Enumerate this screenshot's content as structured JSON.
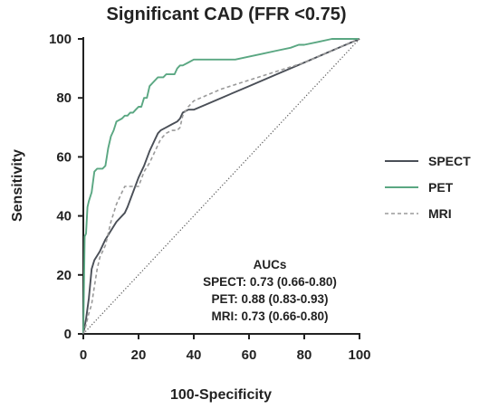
{
  "chart_data": {
    "type": "line",
    "title": "Significant CAD (FFR <0.75)",
    "xlabel": "100-Specificity",
    "ylabel": "Sensitivity",
    "xlim": [
      0,
      100
    ],
    "ylim": [
      0,
      100
    ],
    "xticks": [
      0,
      20,
      40,
      60,
      80,
      100
    ],
    "yticks": [
      0,
      20,
      40,
      60,
      80,
      100
    ],
    "grid": false,
    "legend_position": "right",
    "colors": {
      "SPECT": "#4a4f57",
      "PET": "#5aa782",
      "MRI": "#9a9a9a",
      "reference": "#555555"
    },
    "series": [
      {
        "name": "SPECT",
        "style": "solid",
        "x": [
          0,
          1,
          2,
          3,
          4,
          6,
          8,
          10,
          12,
          15,
          16,
          18,
          20,
          22,
          24,
          26,
          27,
          28,
          30,
          32,
          34,
          35,
          36,
          38,
          40,
          45,
          50,
          60,
          70,
          80,
          90,
          100
        ],
        "y": [
          0,
          5,
          12,
          22,
          25,
          28,
          32,
          35,
          38,
          41,
          43,
          48,
          53,
          57,
          62,
          66,
          68,
          69,
          70,
          71,
          72,
          73,
          75,
          76,
          76,
          78,
          80,
          84,
          88,
          92,
          96,
          100
        ]
      },
      {
        "name": "PET",
        "style": "solid",
        "x": [
          0,
          0.5,
          1,
          1.5,
          2,
          3,
          4,
          5,
          7,
          8,
          9,
          10,
          11,
          12,
          14,
          15,
          16,
          17,
          18,
          19,
          20,
          21,
          22,
          23,
          24,
          25,
          27,
          29,
          30,
          33,
          34,
          35,
          36,
          38,
          40,
          55,
          60,
          65,
          70,
          75,
          78,
          80,
          85,
          90,
          95,
          100
        ],
        "y": [
          0,
          33,
          34,
          43,
          45,
          48,
          55,
          56,
          56,
          57,
          63,
          67,
          69,
          72,
          73,
          74,
          74,
          75,
          75,
          76,
          77,
          77,
          80,
          80,
          84,
          85,
          87,
          87,
          88,
          88,
          90,
          91,
          91,
          92,
          93,
          93,
          94,
          95,
          96,
          97,
          98,
          98,
          99,
          100,
          100,
          100
        ]
      },
      {
        "name": "MRI",
        "style": "dashed",
        "x": [
          0,
          1,
          2,
          3,
          4,
          5,
          6,
          8,
          10,
          12,
          14,
          15,
          16,
          18,
          20,
          22,
          24,
          26,
          28,
          29,
          30,
          32,
          34,
          35,
          36,
          38,
          40,
          45,
          50,
          60,
          70,
          80,
          90,
          100
        ],
        "y": [
          0,
          3,
          7,
          10,
          16,
          22,
          26,
          30,
          38,
          44,
          48,
          50,
          50,
          50,
          50,
          55,
          58,
          62,
          66,
          67,
          68,
          69,
          69,
          70,
          74,
          77,
          79,
          81,
          83,
          86,
          89,
          92,
          96,
          100
        ]
      },
      {
        "name": "",
        "style": "dotted",
        "role": "reference",
        "x": [
          0,
          100
        ],
        "y": [
          0,
          100
        ]
      }
    ],
    "legend": [
      "SPECT",
      "PET",
      "MRI"
    ],
    "annotation": {
      "heading": "AUCs",
      "lines": [
        "SPECT: 0.73 (0.66-0.80)",
        "PET: 0.88 (0.83-0.93)",
        "MRI: 0.73 (0.66-0.80)"
      ]
    }
  }
}
